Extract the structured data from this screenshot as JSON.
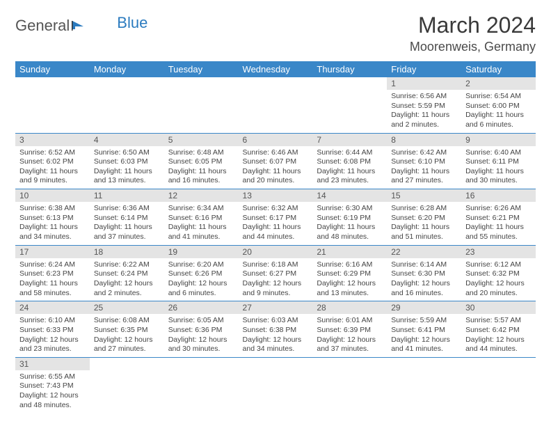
{
  "logo": {
    "part1": "General",
    "part2": "Blue"
  },
  "header": {
    "title": "March 2024",
    "location": "Moorenweis, Germany"
  },
  "weekdays": [
    "Sunday",
    "Monday",
    "Tuesday",
    "Wednesday",
    "Thursday",
    "Friday",
    "Saturday"
  ],
  "colors": {
    "header_bg": "#3a87c8",
    "daynum_bg": "#e4e4e4",
    "rule": "#3a87c8"
  },
  "startOffset": 5,
  "days": [
    {
      "n": 1,
      "sunrise": "6:56 AM",
      "sunset": "5:59 PM",
      "daylight": "11 hours and 2 minutes."
    },
    {
      "n": 2,
      "sunrise": "6:54 AM",
      "sunset": "6:00 PM",
      "daylight": "11 hours and 6 minutes."
    },
    {
      "n": 3,
      "sunrise": "6:52 AM",
      "sunset": "6:02 PM",
      "daylight": "11 hours and 9 minutes."
    },
    {
      "n": 4,
      "sunrise": "6:50 AM",
      "sunset": "6:03 PM",
      "daylight": "11 hours and 13 minutes."
    },
    {
      "n": 5,
      "sunrise": "6:48 AM",
      "sunset": "6:05 PM",
      "daylight": "11 hours and 16 minutes."
    },
    {
      "n": 6,
      "sunrise": "6:46 AM",
      "sunset": "6:07 PM",
      "daylight": "11 hours and 20 minutes."
    },
    {
      "n": 7,
      "sunrise": "6:44 AM",
      "sunset": "6:08 PM",
      "daylight": "11 hours and 23 minutes."
    },
    {
      "n": 8,
      "sunrise": "6:42 AM",
      "sunset": "6:10 PM",
      "daylight": "11 hours and 27 minutes."
    },
    {
      "n": 9,
      "sunrise": "6:40 AM",
      "sunset": "6:11 PM",
      "daylight": "11 hours and 30 minutes."
    },
    {
      "n": 10,
      "sunrise": "6:38 AM",
      "sunset": "6:13 PM",
      "daylight": "11 hours and 34 minutes."
    },
    {
      "n": 11,
      "sunrise": "6:36 AM",
      "sunset": "6:14 PM",
      "daylight": "11 hours and 37 minutes."
    },
    {
      "n": 12,
      "sunrise": "6:34 AM",
      "sunset": "6:16 PM",
      "daylight": "11 hours and 41 minutes."
    },
    {
      "n": 13,
      "sunrise": "6:32 AM",
      "sunset": "6:17 PM",
      "daylight": "11 hours and 44 minutes."
    },
    {
      "n": 14,
      "sunrise": "6:30 AM",
      "sunset": "6:19 PM",
      "daylight": "11 hours and 48 minutes."
    },
    {
      "n": 15,
      "sunrise": "6:28 AM",
      "sunset": "6:20 PM",
      "daylight": "11 hours and 51 minutes."
    },
    {
      "n": 16,
      "sunrise": "6:26 AM",
      "sunset": "6:21 PM",
      "daylight": "11 hours and 55 minutes."
    },
    {
      "n": 17,
      "sunrise": "6:24 AM",
      "sunset": "6:23 PM",
      "daylight": "11 hours and 58 minutes."
    },
    {
      "n": 18,
      "sunrise": "6:22 AM",
      "sunset": "6:24 PM",
      "daylight": "12 hours and 2 minutes."
    },
    {
      "n": 19,
      "sunrise": "6:20 AM",
      "sunset": "6:26 PM",
      "daylight": "12 hours and 6 minutes."
    },
    {
      "n": 20,
      "sunrise": "6:18 AM",
      "sunset": "6:27 PM",
      "daylight": "12 hours and 9 minutes."
    },
    {
      "n": 21,
      "sunrise": "6:16 AM",
      "sunset": "6:29 PM",
      "daylight": "12 hours and 13 minutes."
    },
    {
      "n": 22,
      "sunrise": "6:14 AM",
      "sunset": "6:30 PM",
      "daylight": "12 hours and 16 minutes."
    },
    {
      "n": 23,
      "sunrise": "6:12 AM",
      "sunset": "6:32 PM",
      "daylight": "12 hours and 20 minutes."
    },
    {
      "n": 24,
      "sunrise": "6:10 AM",
      "sunset": "6:33 PM",
      "daylight": "12 hours and 23 minutes."
    },
    {
      "n": 25,
      "sunrise": "6:08 AM",
      "sunset": "6:35 PM",
      "daylight": "12 hours and 27 minutes."
    },
    {
      "n": 26,
      "sunrise": "6:05 AM",
      "sunset": "6:36 PM",
      "daylight": "12 hours and 30 minutes."
    },
    {
      "n": 27,
      "sunrise": "6:03 AM",
      "sunset": "6:38 PM",
      "daylight": "12 hours and 34 minutes."
    },
    {
      "n": 28,
      "sunrise": "6:01 AM",
      "sunset": "6:39 PM",
      "daylight": "12 hours and 37 minutes."
    },
    {
      "n": 29,
      "sunrise": "5:59 AM",
      "sunset": "6:41 PM",
      "daylight": "12 hours and 41 minutes."
    },
    {
      "n": 30,
      "sunrise": "5:57 AM",
      "sunset": "6:42 PM",
      "daylight": "12 hours and 44 minutes."
    },
    {
      "n": 31,
      "sunrise": "6:55 AM",
      "sunset": "7:43 PM",
      "daylight": "12 hours and 48 minutes."
    }
  ],
  "labels": {
    "sunrise": "Sunrise: ",
    "sunset": "Sunset: ",
    "daylight": "Daylight: "
  }
}
